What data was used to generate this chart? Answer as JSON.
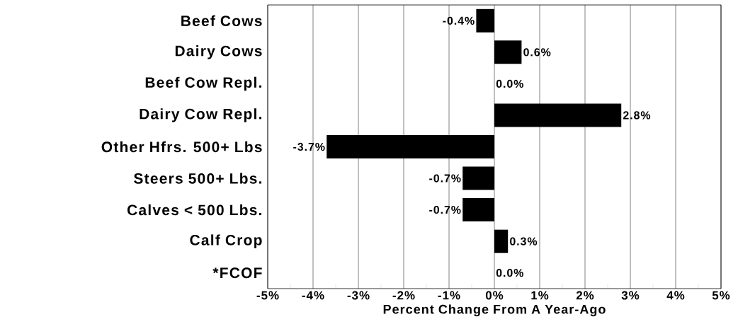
{
  "chart_data": {
    "type": "bar",
    "orientation": "horizontal",
    "xlabel": "Percent Change From A Year-Ago",
    "categories": [
      "Beef Cows",
      "Dairy Cows",
      "Beef Cow Repl.",
      "Dairy Cow Repl.",
      "Other Hfrs. 500+ Lbs",
      "Steers 500+ Lbs.",
      "Calves < 500 Lbs.",
      "Calf Crop",
      "*FCOF"
    ],
    "values": [
      -0.4,
      0.6,
      0.0,
      2.8,
      -3.7,
      -0.7,
      -0.7,
      0.3,
      0.0
    ],
    "value_labels": [
      "-0.4%",
      "0.6%",
      "0.0%",
      "2.8%",
      "-3.7%",
      "-0.7%",
      "-0.7%",
      "0.3%",
      "0.0%"
    ],
    "color": "#000000",
    "xlim": [
      -5,
      5
    ],
    "xticks": [
      {
        "value": -5,
        "label": "-5%"
      },
      {
        "value": -4,
        "label": "-4%"
      },
      {
        "value": -3,
        "label": "-3%"
      },
      {
        "value": -2,
        "label": "-2%"
      },
      {
        "value": -1,
        "label": "-1%"
      },
      {
        "value": 0,
        "label": "0%"
      },
      {
        "value": 1,
        "label": "1%"
      },
      {
        "value": 2,
        "label": "2%"
      },
      {
        "value": 3,
        "label": "3%"
      },
      {
        "value": 4,
        "label": "4%"
      },
      {
        "value": 5,
        "label": "5%"
      }
    ],
    "grid": "x"
  }
}
